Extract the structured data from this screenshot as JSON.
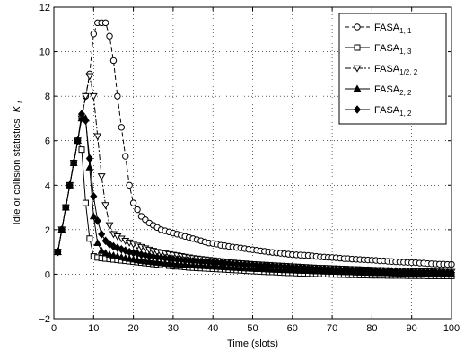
{
  "chart_data": {
    "type": "line",
    "xlabel": "Time (slots)",
    "ylabel": "Idle or collision statistics",
    "ylabel_symbol": "K",
    "ylabel_subscript": "t",
    "xlim": [
      0,
      100
    ],
    "ylim": [
      -2,
      12
    ],
    "xticks": [
      "0",
      "10",
      "20",
      "30",
      "40",
      "50",
      "60",
      "70",
      "80",
      "90",
      "100"
    ],
    "yticks": [
      "−2",
      "0",
      "2",
      "4",
      "6",
      "8",
      "10",
      "12"
    ],
    "grid": true,
    "legend_position": "top-right",
    "series": [
      {
        "name": "FASA",
        "sub": "1, 1",
        "marker": "circle",
        "dash": "5,3",
        "x": [
          1,
          2,
          3,
          4,
          5,
          6,
          7,
          8,
          9,
          10,
          11,
          12,
          13,
          14,
          15,
          16,
          17,
          18,
          19,
          20,
          21,
          22,
          23,
          24,
          25,
          26,
          27,
          28,
          29,
          30,
          31,
          32,
          33,
          34,
          35,
          36,
          37,
          38,
          39,
          40,
          41,
          42,
          43,
          44,
          45,
          46,
          47,
          48,
          49,
          50,
          51,
          52,
          53,
          54,
          55,
          56,
          57,
          58,
          59,
          60,
          61,
          62,
          63,
          64,
          65,
          66,
          67,
          68,
          69,
          70,
          71,
          72,
          73,
          74,
          75,
          76,
          77,
          78,
          79,
          80,
          81,
          82,
          83,
          84,
          85,
          86,
          87,
          88,
          89,
          90,
          91,
          92,
          93,
          94,
          95,
          96,
          97,
          98,
          99,
          100
        ],
        "y": [
          1.0,
          2.0,
          3.0,
          4.0,
          5.0,
          6.0,
          7.0,
          8.0,
          9.0,
          10.8,
          11.3,
          11.3,
          11.3,
          10.7,
          9.6,
          8.0,
          6.6,
          5.3,
          4.0,
          3.2,
          2.9,
          2.6,
          2.45,
          2.3,
          2.2,
          2.1,
          2.0,
          1.95,
          1.9,
          1.85,
          1.8,
          1.75,
          1.7,
          1.65,
          1.6,
          1.55,
          1.5,
          1.45,
          1.4,
          1.38,
          1.35,
          1.3,
          1.28,
          1.25,
          1.22,
          1.2,
          1.18,
          1.15,
          1.12,
          1.1,
          1.08,
          1.05,
          1.03,
          1.0,
          0.98,
          0.96,
          0.94,
          0.92,
          0.9,
          0.88,
          0.87,
          0.86,
          0.85,
          0.84,
          0.82,
          0.8,
          0.78,
          0.77,
          0.76,
          0.75,
          0.74,
          0.72,
          0.7,
          0.7,
          0.68,
          0.67,
          0.66,
          0.65,
          0.64,
          0.63,
          0.62,
          0.6,
          0.6,
          0.58,
          0.57,
          0.56,
          0.55,
          0.54,
          0.53,
          0.52,
          0.52,
          0.5,
          0.5,
          0.48,
          0.47,
          0.46,
          0.45,
          0.45,
          0.44,
          0.44
        ]
      },
      {
        "name": "FASA",
        "sub": "1, 3",
        "marker": "square",
        "dash": "",
        "x": [
          1,
          2,
          3,
          4,
          5,
          6,
          7,
          8,
          9,
          10,
          11,
          12,
          13,
          14,
          15,
          16,
          17,
          18,
          19,
          20,
          21,
          22,
          23,
          24,
          25,
          26,
          27,
          28,
          29,
          30,
          31,
          32,
          33,
          34,
          35,
          36,
          37,
          38,
          39,
          40,
          41,
          42,
          43,
          44,
          45,
          46,
          47,
          48,
          49,
          50,
          51,
          52,
          53,
          54,
          55,
          56,
          57,
          58,
          59,
          60,
          61,
          62,
          63,
          64,
          65,
          66,
          67,
          68,
          69,
          70,
          71,
          72,
          73,
          74,
          75,
          76,
          77,
          78,
          79,
          80,
          81,
          82,
          83,
          84,
          85,
          86,
          87,
          88,
          89,
          90,
          91,
          92,
          93,
          94,
          95,
          96,
          97,
          98,
          99,
          100
        ],
        "y": [
          1.0,
          2.0,
          3.0,
          4.0,
          5.0,
          6.0,
          5.6,
          3.2,
          1.6,
          0.8,
          0.75,
          0.72,
          0.7,
          0.68,
          0.66,
          0.64,
          0.62,
          0.6,
          0.58,
          0.56,
          0.54,
          0.52,
          0.5,
          0.48,
          0.46,
          0.44,
          0.42,
          0.4,
          0.38,
          0.36,
          0.35,
          0.34,
          0.32,
          0.3,
          0.29,
          0.28,
          0.27,
          0.26,
          0.25,
          0.24,
          0.23,
          0.22,
          0.21,
          0.2,
          0.19,
          0.18,
          0.17,
          0.16,
          0.15,
          0.14,
          0.13,
          0.12,
          0.11,
          0.1,
          0.1,
          0.09,
          0.08,
          0.07,
          0.06,
          0.06,
          0.05,
          0.04,
          0.04,
          0.03,
          0.02,
          0.02,
          0.01,
          0.0,
          0.0,
          -0.01,
          -0.01,
          -0.02,
          -0.02,
          -0.03,
          -0.03,
          -0.03,
          -0.04,
          -0.04,
          -0.04,
          -0.05,
          -0.05,
          -0.05,
          -0.05,
          -0.06,
          -0.06,
          -0.06,
          -0.06,
          -0.06,
          -0.07,
          -0.07,
          -0.07,
          -0.07,
          -0.07,
          -0.08,
          -0.08,
          -0.08,
          -0.08,
          -0.08,
          -0.08,
          -0.08
        ]
      },
      {
        "name": "FASA",
        "sub": "1/2, 2",
        "marker": "triangle-down",
        "dash": "7,2,2,2",
        "x": [
          1,
          2,
          3,
          4,
          5,
          6,
          7,
          8,
          9,
          10,
          11,
          12,
          13,
          14,
          15,
          16,
          17,
          18,
          19,
          20,
          21,
          22,
          23,
          24,
          25,
          26,
          27,
          28,
          29,
          30,
          31,
          32,
          33,
          34,
          35,
          36,
          37,
          38,
          39,
          40,
          41,
          42,
          43,
          44,
          45,
          46,
          47,
          48,
          49,
          50,
          51,
          52,
          53,
          54,
          55,
          56,
          57,
          58,
          59,
          60,
          61,
          62,
          63,
          64,
          65,
          66,
          67,
          68,
          69,
          70,
          71,
          72,
          73,
          74,
          75,
          76,
          77,
          78,
          79,
          80,
          81,
          82,
          83,
          84,
          85,
          86,
          87,
          88,
          89,
          90,
          91,
          92,
          93,
          94,
          95,
          96,
          97,
          98,
          99,
          100
        ],
        "y": [
          1.0,
          2.0,
          3.0,
          4.0,
          5.0,
          6.0,
          7.0,
          8.0,
          8.9,
          8.0,
          6.2,
          4.4,
          3.1,
          2.2,
          1.8,
          1.7,
          1.6,
          1.5,
          1.42,
          1.35,
          1.28,
          1.22,
          1.16,
          1.1,
          1.05,
          1.0,
          0.96,
          0.93,
          0.9,
          0.87,
          0.84,
          0.81,
          0.78,
          0.75,
          0.72,
          0.7,
          0.68,
          0.66,
          0.64,
          0.62,
          0.6,
          0.58,
          0.56,
          0.54,
          0.52,
          0.5,
          0.49,
          0.48,
          0.46,
          0.45,
          0.44,
          0.43,
          0.42,
          0.41,
          0.4,
          0.39,
          0.38,
          0.37,
          0.36,
          0.35,
          0.34,
          0.33,
          0.32,
          0.31,
          0.3,
          0.29,
          0.28,
          0.28,
          0.27,
          0.26,
          0.25,
          0.24,
          0.24,
          0.23,
          0.22,
          0.22,
          0.21,
          0.2,
          0.2,
          0.19,
          0.18,
          0.18,
          0.17,
          0.17,
          0.16,
          0.16,
          0.15,
          0.15,
          0.14,
          0.14,
          0.13,
          0.13,
          0.12,
          0.12,
          0.12,
          0.11,
          0.11,
          0.1,
          0.1,
          0.1
        ]
      },
      {
        "name": "FASA",
        "sub": "2, 2",
        "marker": "triangle-up",
        "dash": "",
        "x": [
          1,
          2,
          3,
          4,
          5,
          6,
          7,
          8,
          9,
          10,
          11,
          12,
          13,
          14,
          15,
          16,
          17,
          18,
          19,
          20,
          21,
          22,
          23,
          24,
          25,
          26,
          27,
          28,
          29,
          30,
          31,
          32,
          33,
          34,
          35,
          36,
          37,
          38,
          39,
          40,
          41,
          42,
          43,
          44,
          45,
          46,
          47,
          48,
          49,
          50,
          51,
          52,
          53,
          54,
          55,
          56,
          57,
          58,
          59,
          60,
          61,
          62,
          63,
          64,
          65,
          66,
          67,
          68,
          69,
          70,
          71,
          72,
          73,
          74,
          75,
          76,
          77,
          78,
          79,
          80,
          81,
          82,
          83,
          84,
          85,
          86,
          87,
          88,
          89,
          90,
          91,
          92,
          93,
          94,
          95,
          96,
          97,
          98,
          99,
          100
        ],
        "y": [
          1.0,
          2.0,
          3.0,
          4.0,
          5.0,
          6.0,
          7.0,
          7.0,
          4.8,
          2.6,
          1.4,
          1.05,
          0.95,
          0.88,
          0.84,
          0.8,
          0.76,
          0.72,
          0.69,
          0.66,
          0.63,
          0.6,
          0.58,
          0.56,
          0.54,
          0.52,
          0.5,
          0.48,
          0.46,
          0.45,
          0.44,
          0.42,
          0.41,
          0.4,
          0.39,
          0.38,
          0.37,
          0.36,
          0.35,
          0.34,
          0.33,
          0.32,
          0.31,
          0.3,
          0.29,
          0.28,
          0.27,
          0.26,
          0.25,
          0.24,
          0.23,
          0.23,
          0.22,
          0.21,
          0.2,
          0.2,
          0.19,
          0.18,
          0.18,
          0.17,
          0.16,
          0.16,
          0.15,
          0.15,
          0.14,
          0.13,
          0.13,
          0.12,
          0.12,
          0.11,
          0.11,
          0.1,
          0.1,
          0.09,
          0.09,
          0.08,
          0.08,
          0.07,
          0.07,
          0.06,
          0.06,
          0.05,
          0.05,
          0.05,
          0.04,
          0.04,
          0.03,
          0.03,
          0.03,
          0.02,
          0.02,
          0.02,
          0.01,
          0.01,
          0.01,
          0.0,
          0.0,
          0.0,
          -0.01,
          -0.01
        ]
      },
      {
        "name": "FASA",
        "sub": "1, 2",
        "marker": "diamond",
        "dash": "",
        "x": [
          1,
          2,
          3,
          4,
          5,
          6,
          7,
          8,
          9,
          10,
          11,
          12,
          13,
          14,
          15,
          16,
          17,
          18,
          19,
          20,
          21,
          22,
          23,
          24,
          25,
          26,
          27,
          28,
          29,
          30,
          31,
          32,
          33,
          34,
          35,
          36,
          37,
          38,
          39,
          40,
          41,
          42,
          43,
          44,
          45,
          46,
          47,
          48,
          49,
          50,
          51,
          52,
          53,
          54,
          55,
          56,
          57,
          58,
          59,
          60,
          61,
          62,
          63,
          64,
          65,
          66,
          67,
          68,
          69,
          70,
          71,
          72,
          73,
          74,
          75,
          76,
          77,
          78,
          79,
          80,
          81,
          82,
          83,
          84,
          85,
          86,
          87,
          88,
          89,
          90,
          91,
          92,
          93,
          94,
          95,
          96,
          97,
          98,
          99,
          100
        ],
        "y": [
          1.0,
          2.0,
          3.0,
          4.0,
          5.0,
          6.0,
          7.2,
          6.9,
          5.2,
          3.5,
          2.4,
          1.8,
          1.5,
          1.35,
          1.25,
          1.18,
          1.12,
          1.06,
          1.0,
          0.96,
          0.92,
          0.88,
          0.85,
          0.82,
          0.79,
          0.76,
          0.74,
          0.72,
          0.7,
          0.68,
          0.66,
          0.64,
          0.62,
          0.6,
          0.59,
          0.58,
          0.56,
          0.55,
          0.54,
          0.52,
          0.51,
          0.5,
          0.49,
          0.48,
          0.46,
          0.45,
          0.44,
          0.43,
          0.42,
          0.41,
          0.4,
          0.39,
          0.38,
          0.37,
          0.36,
          0.35,
          0.34,
          0.33,
          0.32,
          0.31,
          0.3,
          0.29,
          0.28,
          0.27,
          0.26,
          0.25,
          0.25,
          0.24,
          0.23,
          0.22,
          0.22,
          0.21,
          0.2,
          0.2,
          0.19,
          0.18,
          0.18,
          0.17,
          0.17,
          0.16,
          0.15,
          0.15,
          0.14,
          0.14,
          0.13,
          0.13,
          0.12,
          0.12,
          0.11,
          0.11,
          0.1,
          0.1,
          0.1,
          0.09,
          0.09,
          0.08,
          0.08,
          0.08,
          0.07,
          0.07
        ]
      }
    ]
  }
}
